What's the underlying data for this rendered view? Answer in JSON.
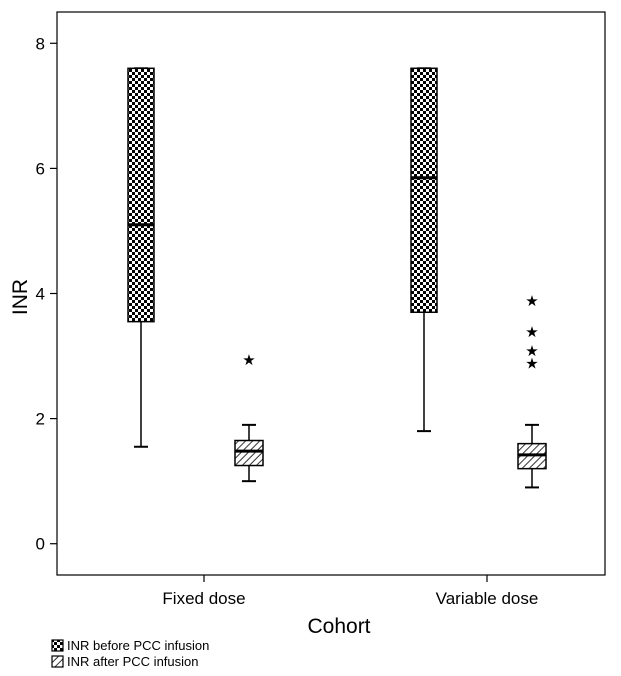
{
  "chart_data": {
    "type": "boxplot",
    "xlabel": "Cohort",
    "ylabel": "INR",
    "ylim": [
      -0.5,
      8.5
    ],
    "yticks": [
      0,
      2,
      4,
      6,
      8
    ],
    "grid": false,
    "legend_position": "bottom-left",
    "categories": [
      "Fixed dose",
      "Variable dose"
    ],
    "series": [
      {
        "name": "INR before PCC infusion",
        "pattern": "checkerboard",
        "boxes": [
          {
            "category": "Fixed dose",
            "whisker_low": 1.55,
            "q1": 3.55,
            "median": 5.1,
            "q3": 7.6,
            "whisker_high": 7.6,
            "outliers": []
          },
          {
            "category": "Variable dose",
            "whisker_low": 1.8,
            "q1": 3.7,
            "median": 5.85,
            "q3": 7.6,
            "whisker_high": 7.6,
            "outliers": []
          }
        ]
      },
      {
        "name": "INR after PCC infusion",
        "pattern": "diagonal-hatch",
        "boxes": [
          {
            "category": "Fixed dose",
            "whisker_low": 1.0,
            "q1": 1.25,
            "median": 1.48,
            "q3": 1.65,
            "whisker_high": 1.9,
            "outliers": [
              2.95
            ]
          },
          {
            "category": "Variable dose",
            "whisker_low": 0.9,
            "q1": 1.2,
            "median": 1.42,
            "q3": 1.6,
            "whisker_high": 1.9,
            "outliers": [
              2.9,
              3.1,
              3.4,
              3.9
            ]
          }
        ]
      }
    ]
  },
  "colors": {
    "line": "#000000",
    "background": "#ffffff"
  }
}
